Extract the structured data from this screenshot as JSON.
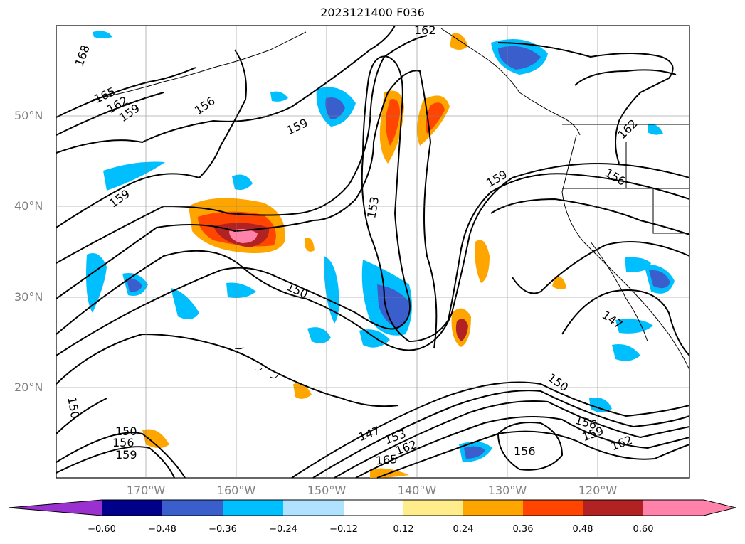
{
  "title": "2023121400 F036",
  "latitude_labels": [
    "50°N",
    "40°N",
    "30°N",
    "20°N"
  ],
  "longitude_labels": [
    "170°W",
    "160°W",
    "150°W",
    "140°W",
    "130°W",
    "120°W"
  ],
  "contour_labels": [
    "168",
    "165",
    "162",
    "159",
    "156",
    "159",
    "159",
    "159",
    "153",
    "150",
    "150",
    "147",
    "153",
    "162",
    "165",
    "156",
    "159",
    "162",
    "150",
    "156",
    "156",
    "147",
    "150",
    "156",
    "159",
    "162",
    "162"
  ],
  "colorbar": {
    "ticks": [
      "−0.60",
      "−0.48",
      "−0.36",
      "−0.24",
      "−0.12",
      "0.12",
      "0.24",
      "0.36",
      "0.48",
      "0.60"
    ],
    "colors": [
      "#9b30d0",
      "#00008b",
      "#3a5fcd",
      "#00bfff",
      "#b0e2ff",
      "#ffffff",
      "#ffec8b",
      "#ffa500",
      "#ff4500",
      "#b22222",
      "#ff82ab"
    ]
  }
}
